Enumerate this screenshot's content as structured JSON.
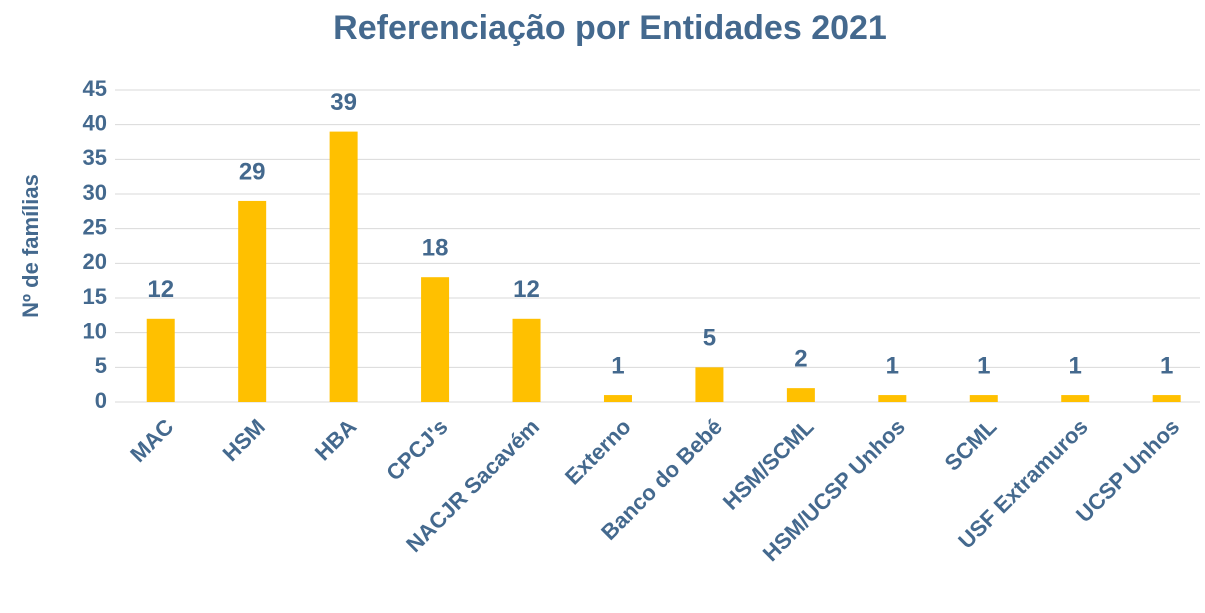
{
  "chart_data": {
    "type": "bar",
    "title": "Referenciação por Entidades 2021",
    "y_label": "Nº de famílias",
    "categories": [
      "MAC",
      "HSM",
      "HBA",
      "CPCJ's",
      "NACJR Sacavém",
      "Externo",
      "Banco do Bebé",
      "HSM/SCML",
      "HSM/UCSP Unhos",
      "SCML",
      "USF Extramuros",
      "UCSP Unhos"
    ],
    "values": [
      12,
      29,
      39,
      18,
      12,
      1,
      5,
      2,
      1,
      1,
      1,
      1
    ],
    "color": "#ffc000",
    "ylim": [
      0,
      45
    ],
    "yticks": [
      0,
      5,
      10,
      15,
      20,
      25,
      30,
      35,
      40,
      45
    ],
    "grid": true
  }
}
